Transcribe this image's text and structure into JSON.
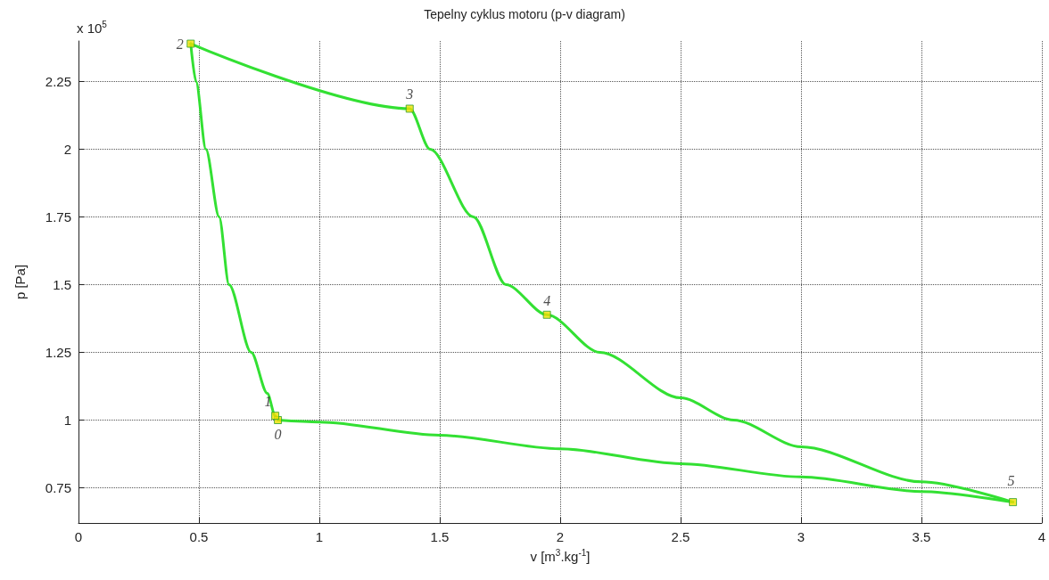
{
  "chart_data": {
    "type": "line",
    "title": "Tepelny cyklus motoru (p-v diagram)",
    "xlabel": "v [m$^{3}$.kg$^{-1}$]",
    "ylabel": "p [Pa]",
    "annotations": [
      "x 10$^{5}$",
      {
        "text": "0",
        "x": 0.828,
        "y": 1.0
      },
      {
        "text": "1",
        "x": 0.817,
        "y": 1.016
      },
      {
        "text": "2",
        "x": 0.466,
        "y": 2.39
      },
      {
        "text": "3",
        "x": 1.375,
        "y": 2.15
      },
      {
        "text": "4",
        "x": 1.945,
        "y": 1.389
      },
      {
        "text": "5",
        "x": 3.88,
        "y": 0.697
      }
    ],
    "series": [
      {
        "color": "#33e033",
        "marker": "none",
        "x": [
          0.466,
          0.488,
          0.529,
          0.584,
          0.625,
          0.717,
          0.784,
          0.817,
          0.828
        ],
        "values": [
          2.39,
          2.25,
          2.0,
          1.75,
          1.5,
          1.25,
          1.099,
          1.016,
          1.0
        ]
      },
      {
        "color": "#33e033",
        "marker": "none",
        "x": [
          0.466,
          1.375,
          1.46,
          1.64,
          1.775,
          1.945,
          2.165,
          2.5,
          2.72,
          3.0,
          3.5,
          3.88
        ],
        "values": [
          2.39,
          2.15,
          2.0,
          1.75,
          1.5,
          1.389,
          1.25,
          1.082,
          1.0,
          0.901,
          0.772,
          0.697
        ]
      },
      {
        "color": "#33e033",
        "marker": "none",
        "x": [
          0.828,
          1.0,
          1.5,
          2.0,
          2.5,
          3.0,
          3.5,
          3.88
        ],
        "values": [
          1.0,
          0.993,
          0.944,
          0.894,
          0.839,
          0.79,
          0.736,
          0.697
        ]
      },
      {
        "type": "scatter",
        "color": "#f0e000",
        "marker": "square",
        "x": [
          0.828,
          0.817,
          0.466,
          1.375,
          1.945,
          3.88
        ],
        "values": [
          1.0,
          1.016,
          2.39,
          2.15,
          1.389,
          0.697
        ]
      }
    ],
    "xlim": [
      0,
      4
    ],
    "xticks": [
      0,
      0.5,
      1,
      1.5,
      2,
      2.5,
      3,
      3.5,
      4
    ],
    "ylim": [
      0.62,
      2.4
    ],
    "yticks": [
      0.75,
      1,
      1.25,
      1.5,
      1.75,
      2,
      2.25
    ],
    "grid": true,
    "line_style": "solid"
  }
}
